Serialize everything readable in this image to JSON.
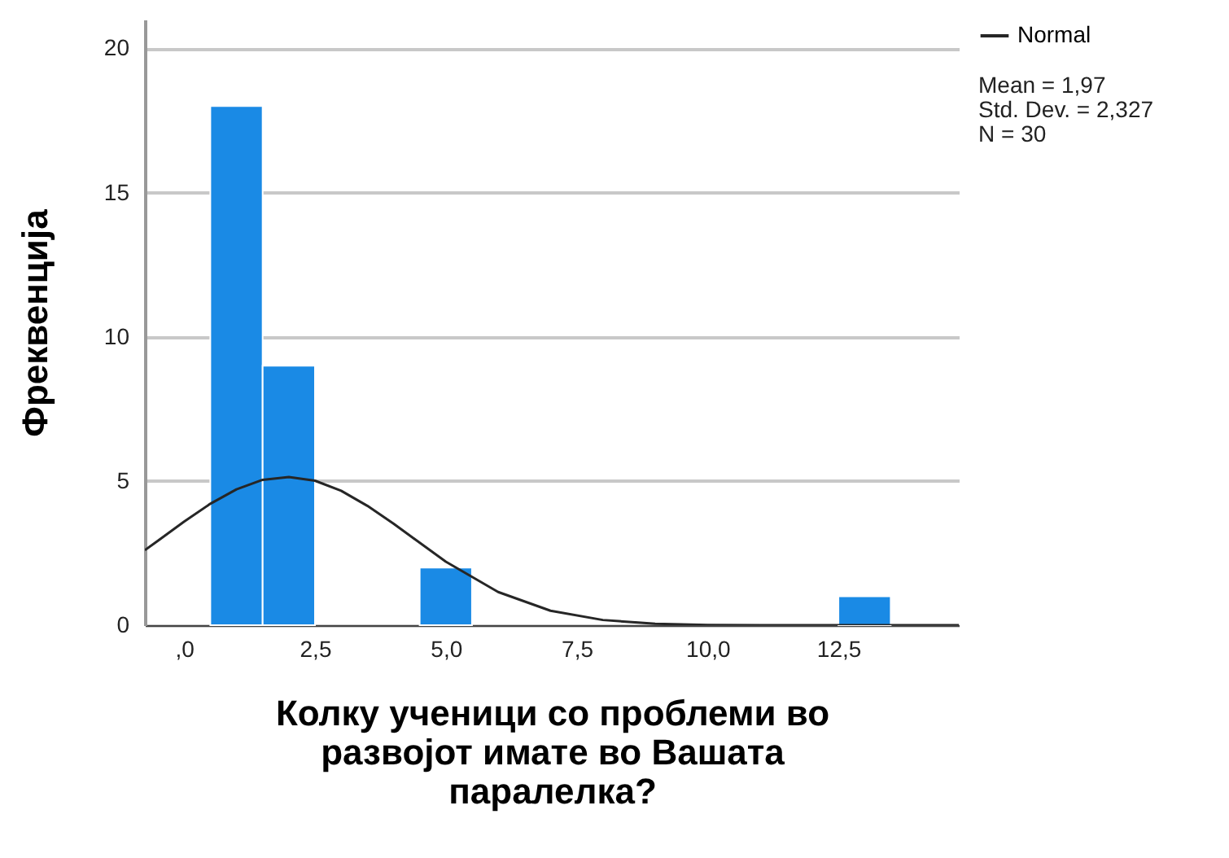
{
  "chart_data": {
    "type": "histogram",
    "xlabel": "Колку ученици со проблеми во развојот имате во Вашата паралелка?",
    "ylabel": "Фреквенција",
    "bins": [
      0.5,
      1.5,
      2.5,
      3.5,
      4.5,
      5.5,
      6.5,
      7.5,
      8.5,
      9.5,
      10.5,
      11.5,
      12.5,
      13.5
    ],
    "series": [
      {
        "color": "#1a8ae5",
        "values": [
          18,
          9,
          0,
          0,
          2,
          0,
          0,
          0,
          0,
          0,
          0,
          0,
          1
        ]
      },
      {
        "type": "line",
        "name": "Normal",
        "color": "#262626",
        "x": [
          -0.75,
          -0.5,
          0,
          0.5,
          1,
          1.5,
          2,
          2.5,
          3,
          3.5,
          4,
          5,
          6,
          7,
          8,
          9,
          10,
          11,
          12,
          13,
          14,
          14.8
        ],
        "values": [
          2.6,
          2.93,
          3.59,
          4.21,
          4.71,
          5.04,
          5.14,
          5.01,
          4.66,
          4.14,
          3.52,
          2.2,
          1.15,
          0.5,
          0.18,
          0.05,
          0.01,
          0,
          0,
          0,
          0,
          0
        ]
      }
    ],
    "xlim": [
      -0.75,
      14.8
    ],
    "xticks": [
      {
        "value": 0,
        "label": ",0"
      },
      {
        "value": 2.5,
        "label": "2,5"
      },
      {
        "value": 5,
        "label": "5,0"
      },
      {
        "value": 7.5,
        "label": "7,5"
      },
      {
        "value": 10,
        "label": "10,0"
      },
      {
        "value": 12.5,
        "label": "12,5"
      }
    ],
    "ylim": [
      0,
      21
    ],
    "yticks": [
      0,
      5,
      10,
      15,
      20
    ],
    "grid": "y",
    "legend": "top right",
    "annotations": [
      "Mean = 1,97",
      "Std. Dev. = 2,327",
      "N = 30"
    ]
  }
}
